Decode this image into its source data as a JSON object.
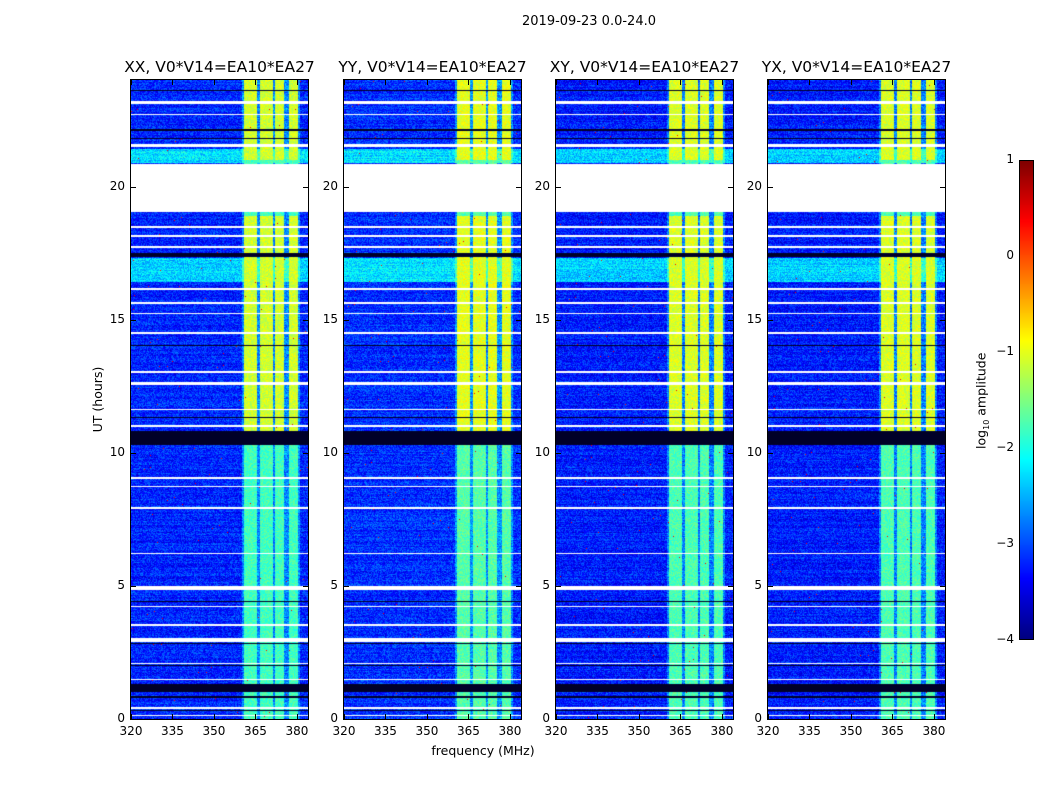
{
  "chart_data": {
    "type": "heatmap",
    "title": "2019-09-23 0.0-24.0",
    "xlabel": "frequency (MHz)",
    "ylabel": "UT (hours)",
    "xlim": [
      320,
      384
    ],
    "ylim": [
      0,
      24
    ],
    "xticks": [
      320,
      335,
      350,
      365,
      380
    ],
    "yticks": [
      0,
      5,
      10,
      15,
      20
    ],
    "panels": [
      {
        "title": "XX, V0*V14=EA10*EA27",
        "band_level": -1.3,
        "bg_level": -3.2
      },
      {
        "title": "YY, V0*V14=EA10*EA27",
        "band_level": -1.2,
        "bg_level": -3.15
      },
      {
        "title": "XY, V0*V14=EA10*EA27",
        "band_level": -1.25,
        "bg_level": -3.25
      },
      {
        "title": "YX, V0*V14=EA10*EA27",
        "band_level": -1.25,
        "bg_level": -3.25
      }
    ],
    "rfi_subbands_mhz": [
      [
        361,
        365.5
      ],
      [
        366.5,
        371.5
      ],
      [
        372,
        375.5
      ],
      [
        377,
        380.5
      ]
    ],
    "bright_rfi_hours": [
      [
        10.8,
        18.9
      ],
      [
        21.0,
        24.0
      ]
    ],
    "cyan_hours": [
      [
        20.9,
        21.4
      ],
      [
        16.4,
        17.3
      ]
    ],
    "flagged_gaps_hours": [
      [
        19.06,
        20.86
      ],
      [
        23.08,
        23.22
      ],
      [
        22.68,
        22.74
      ],
      [
        21.5,
        21.6
      ],
      [
        18.45,
        18.52
      ],
      [
        18.1,
        18.16
      ],
      [
        17.7,
        17.76
      ],
      [
        16.1,
        16.18
      ],
      [
        15.6,
        15.66
      ],
      [
        15.2,
        15.26
      ],
      [
        14.45,
        14.55
      ],
      [
        13.0,
        13.08
      ],
      [
        12.55,
        12.65
      ],
      [
        11.6,
        11.66
      ],
      [
        10.95,
        11.05
      ],
      [
        9.0,
        9.1
      ],
      [
        8.7,
        8.76
      ],
      [
        7.9,
        7.95
      ],
      [
        6.2,
        6.25
      ],
      [
        4.85,
        5.0
      ],
      [
        4.2,
        4.26
      ],
      [
        3.48,
        3.56
      ],
      [
        2.9,
        3.05
      ],
      [
        2.05,
        2.11
      ],
      [
        1.45,
        1.51
      ],
      [
        0.38,
        0.44
      ],
      [
        0.1,
        0.16
      ]
    ],
    "dark_lines_hours": [
      [
        10.3,
        10.8
      ],
      [
        21.78,
        21.84
      ],
      [
        22.1,
        22.16
      ],
      [
        17.35,
        17.5
      ],
      [
        14.0,
        14.05
      ],
      [
        11.3,
        11.36
      ],
      [
        4.4,
        4.45
      ],
      [
        2.8,
        2.85
      ],
      [
        2.0,
        2.04
      ],
      [
        1.0,
        1.3
      ],
      [
        0.8,
        0.85
      ],
      [
        0.3,
        0.34
      ],
      [
        23.6,
        23.64
      ]
    ],
    "colorbar": {
      "label": "log10 amplitude",
      "label_main": "log",
      "label_sub": "10",
      "label_rest": " amplitude",
      "range": [
        -4,
        1
      ],
      "ticks": [
        "1",
        "0",
        "−1",
        "−2",
        "−3",
        "−4"
      ],
      "colormap": "jet"
    },
    "ytick_labels": [
      "0",
      "5",
      "10",
      "15",
      "20"
    ],
    "xtick_labels": [
      "320",
      "335",
      "350",
      "365",
      "380"
    ]
  }
}
